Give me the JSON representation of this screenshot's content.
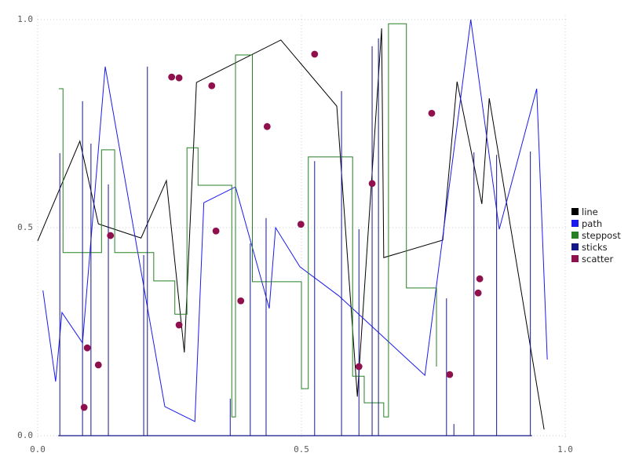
{
  "legend": {
    "items": [
      {
        "label": "line",
        "color": "#000000"
      },
      {
        "label": "path",
        "color": "#1a1aee"
      },
      {
        "label": "steppost",
        "color": "#268026"
      },
      {
        "label": "sticks",
        "color": "#16168b"
      },
      {
        "label": "scatter",
        "color": "#8f104d"
      }
    ]
  },
  "chart_data": {
    "type": "mixed",
    "xlim": [
      0.0,
      1.0
    ],
    "ylim": [
      0.0,
      1.0
    ],
    "grid": true,
    "xticks": [
      0.0,
      0.5,
      1.0
    ],
    "yticks": [
      0.0,
      0.5,
      1.0
    ],
    "tick_labels": {
      "x": [
        "0.0",
        "0.5",
        "1.0"
      ],
      "y": [
        "0.0",
        "0.5",
        "1.0"
      ]
    },
    "grid_color": "#ccccdd",
    "legend_position": "right-outside",
    "series": [
      {
        "name": "line",
        "type": "line",
        "color": "#000000",
        "points": [
          [
            0.0,
            0.468
          ],
          [
            0.08,
            0.708
          ],
          [
            0.115,
            0.509
          ],
          [
            0.196,
            0.475
          ],
          [
            0.244,
            0.613
          ],
          [
            0.278,
            0.2
          ],
          [
            0.301,
            0.849
          ],
          [
            0.461,
            0.951
          ],
          [
            0.567,
            0.792
          ],
          [
            0.606,
            0.094
          ],
          [
            0.652,
            0.979
          ],
          [
            0.656,
            0.428
          ],
          [
            0.768,
            0.47
          ],
          [
            0.795,
            0.851
          ],
          [
            0.842,
            0.557
          ],
          [
            0.856,
            0.811
          ],
          [
            0.96,
            0.015
          ]
        ]
      },
      {
        "name": "path",
        "type": "line",
        "color": "#1a1aee",
        "points": [
          [
            0.01,
            0.349
          ],
          [
            0.034,
            0.13
          ],
          [
            0.046,
            0.296
          ],
          [
            0.085,
            0.223
          ],
          [
            0.128,
            0.887
          ],
          [
            0.241,
            0.07
          ],
          [
            0.298,
            0.034
          ],
          [
            0.315,
            0.56
          ],
          [
            0.375,
            0.598
          ],
          [
            0.439,
            0.306
          ],
          [
            0.451,
            0.5
          ],
          [
            0.497,
            0.406
          ],
          [
            0.571,
            0.336
          ],
          [
            0.734,
            0.145
          ],
          [
            0.821,
            1.0
          ],
          [
            0.875,
            0.496
          ],
          [
            0.946,
            0.834
          ],
          [
            0.966,
            0.183
          ]
        ]
      },
      {
        "name": "steppost",
        "type": "step-post",
        "color": "#268026",
        "points": [
          [
            0.04,
            0.834
          ],
          [
            0.048,
            0.44
          ],
          [
            0.121,
            0.687
          ],
          [
            0.146,
            0.44
          ],
          [
            0.22,
            0.372
          ],
          [
            0.26,
            0.292
          ],
          [
            0.283,
            0.692
          ],
          [
            0.304,
            0.602
          ],
          [
            0.368,
            0.045
          ],
          [
            0.375,
            0.915
          ],
          [
            0.407,
            0.37
          ],
          [
            0.5,
            0.113
          ],
          [
            0.513,
            0.67
          ],
          [
            0.597,
            0.143
          ],
          [
            0.619,
            0.079
          ],
          [
            0.656,
            0.045
          ],
          [
            0.665,
            0.99
          ],
          [
            0.699,
            0.355
          ],
          [
            0.756,
            0.166
          ]
        ]
      },
      {
        "name": "sticks",
        "type": "sticks",
        "color": "#16168b",
        "baseline": 0.0,
        "points": [
          [
            0.042,
            0.679
          ],
          [
            0.085,
            0.804
          ],
          [
            0.101,
            0.702
          ],
          [
            0.134,
            0.604
          ],
          [
            0.201,
            0.434
          ],
          [
            0.208,
            0.887
          ],
          [
            0.365,
            0.089
          ],
          [
            0.403,
            0.462
          ],
          [
            0.433,
            0.523
          ],
          [
            0.525,
            0.66
          ],
          [
            0.576,
            0.828
          ],
          [
            0.609,
            0.496
          ],
          [
            0.634,
            0.936
          ],
          [
            0.646,
            0.955
          ],
          [
            0.775,
            0.33
          ],
          [
            0.789,
            0.028
          ],
          [
            0.827,
            0.681
          ],
          [
            0.87,
            0.675
          ],
          [
            0.934,
            0.683
          ]
        ]
      },
      {
        "name": "scatter",
        "type": "scatter",
        "color": "#8f104d",
        "marker_radius": 4.4,
        "points": [
          [
            0.088,
            0.068
          ],
          [
            0.094,
            0.211
          ],
          [
            0.115,
            0.17
          ],
          [
            0.138,
            0.481
          ],
          [
            0.254,
            0.862
          ],
          [
            0.268,
            0.86
          ],
          [
            0.268,
            0.266
          ],
          [
            0.33,
            0.841
          ],
          [
            0.338,
            0.492
          ],
          [
            0.385,
            0.324
          ],
          [
            0.435,
            0.743
          ],
          [
            0.499,
            0.508
          ],
          [
            0.525,
            0.917
          ],
          [
            0.634,
            0.606
          ],
          [
            0.609,
            0.166
          ],
          [
            0.747,
            0.775
          ],
          [
            0.781,
            0.147
          ],
          [
            0.835,
            0.343
          ],
          [
            0.838,
            0.377
          ]
        ]
      }
    ]
  }
}
